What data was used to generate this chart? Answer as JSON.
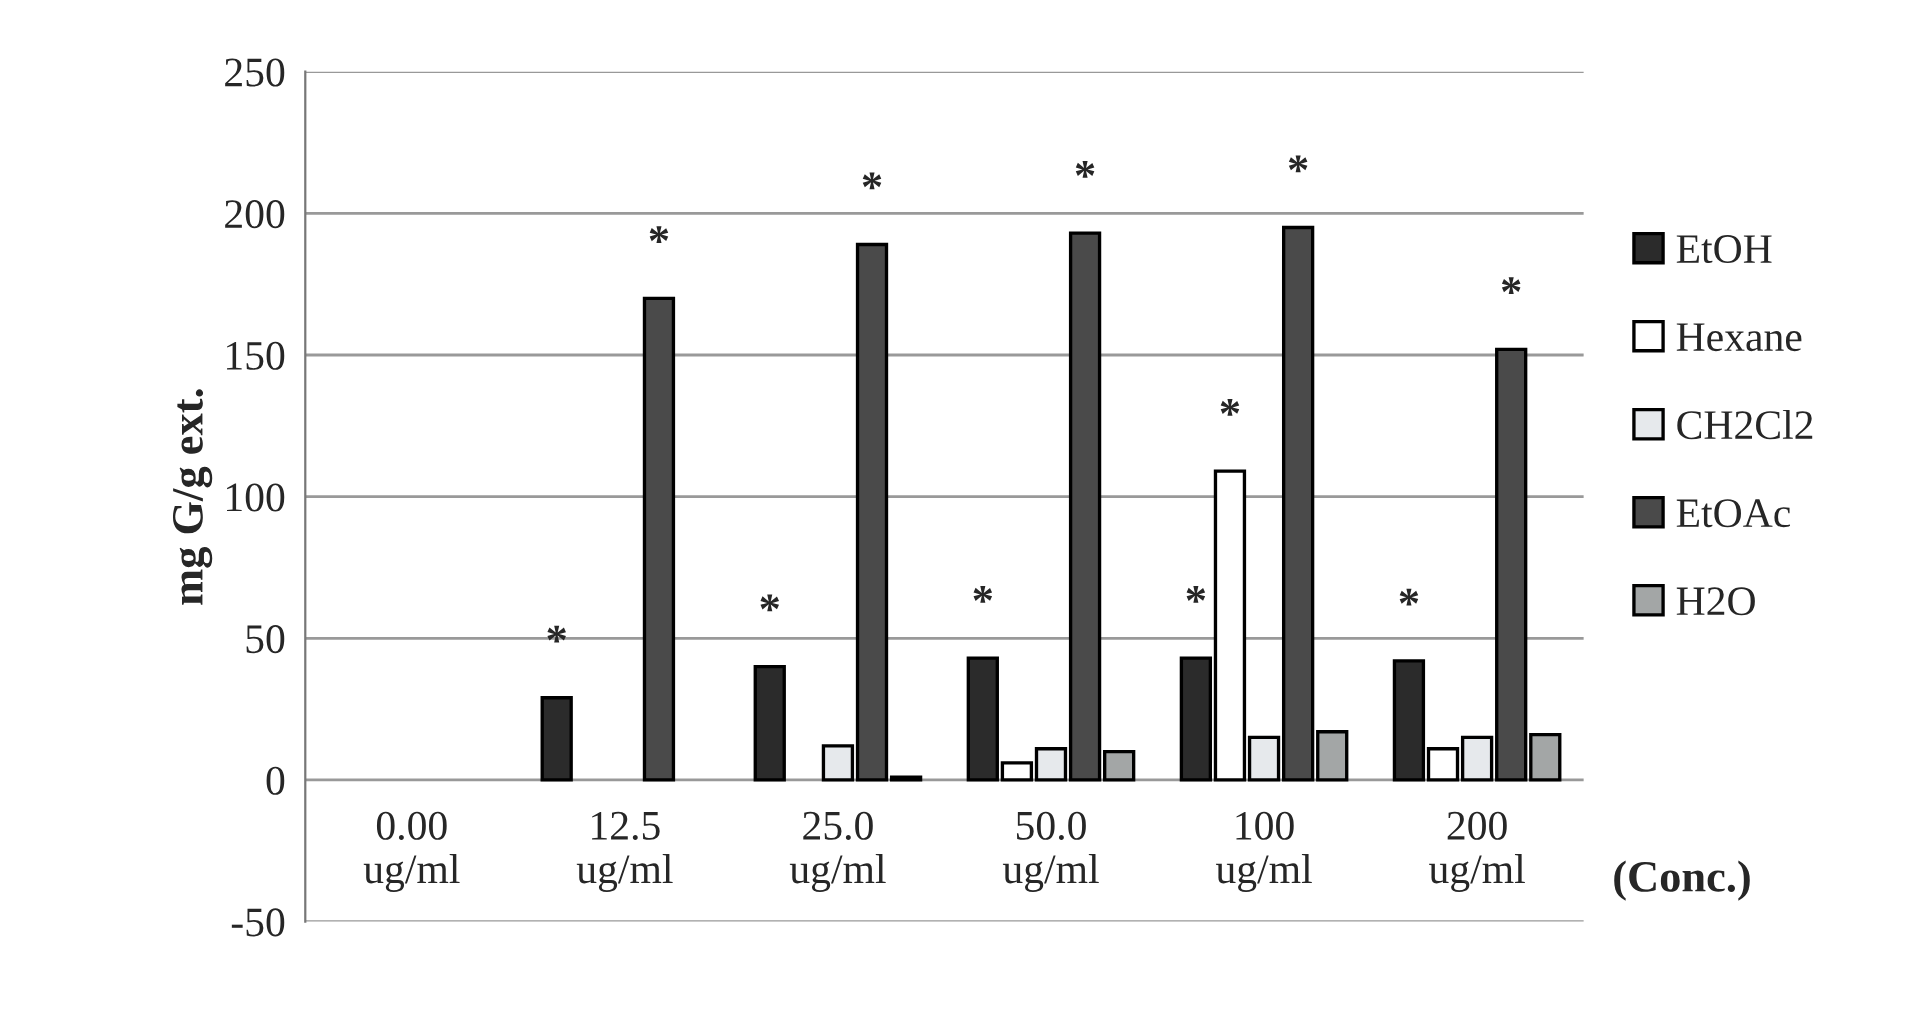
{
  "chart_data": {
    "type": "bar",
    "ylabel": "mg G/g ext.",
    "xlabel": "(Conc.)",
    "categories": [
      "0.00\nug/ml",
      "12.5\nug/ml",
      "25.0\nug/ml",
      "50.0\nug/ml",
      "100\nug/ml",
      "200\nug/ml"
    ],
    "series": [
      {
        "name": "EtOH",
        "color": "#2b2b2b",
        "values": [
          null,
          29,
          40,
          43,
          43,
          42
        ],
        "value_labels": [
          null,
          "*",
          "*",
          "*",
          "*",
          "*"
        ]
      },
      {
        "name": "Hexane",
        "color": "#ffffff",
        "values": [
          null,
          null,
          null,
          6,
          109,
          11
        ],
        "value_labels": [
          null,
          null,
          null,
          null,
          "*",
          null
        ]
      },
      {
        "name": "CH2Cl2",
        "color": "#e6e9ec",
        "values": [
          null,
          null,
          12,
          11,
          15,
          15
        ],
        "value_labels": [
          null,
          null,
          null,
          null,
          null,
          null
        ]
      },
      {
        "name": "EtOAc",
        "color": "#4a4a4a",
        "values": [
          null,
          170,
          189,
          193,
          195,
          152
        ],
        "value_labels": [
          null,
          "*",
          "*",
          "*",
          "*",
          "*"
        ]
      },
      {
        "name": "H2O",
        "color": "#a3a6a6",
        "values": [
          null,
          null,
          1,
          10,
          17,
          16
        ],
        "value_labels": [
          null,
          null,
          null,
          null,
          null,
          null
        ]
      }
    ],
    "ylim": [
      -50,
      250
    ],
    "yticks": [
      -50,
      0,
      50,
      100,
      150,
      200,
      250
    ],
    "grid": "y",
    "legend": "right"
  }
}
